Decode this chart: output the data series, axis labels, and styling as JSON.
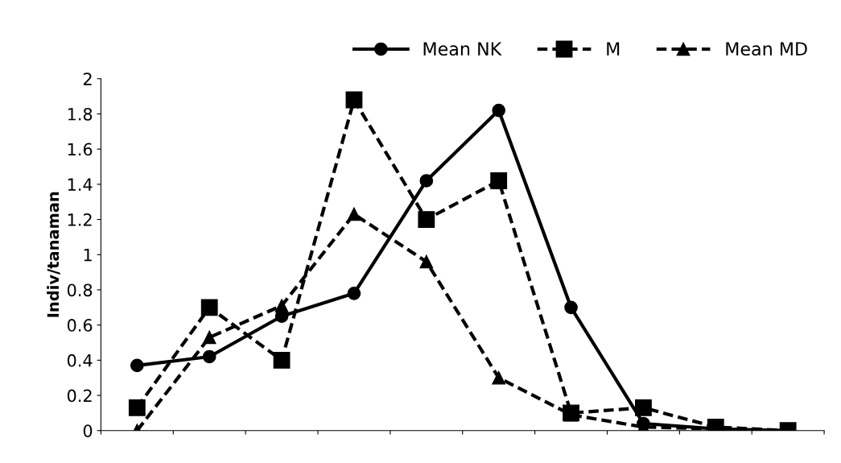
{
  "chart_data": {
    "type": "line",
    "ylabel": "Indiv/tanaman",
    "categories": [
      null,
      null,
      null,
      null,
      null,
      null,
      null,
      null,
      null,
      null
    ],
    "series": [
      {
        "name": "Mean NK",
        "color": "#000000",
        "marker": "circle",
        "line_style": "solid",
        "values": [
          0.37,
          0.42,
          0.65,
          0.78,
          1.42,
          1.82,
          0.7,
          0.04,
          0.01,
          0.0
        ]
      },
      {
        "name": "M",
        "color": "#000000",
        "marker": "square",
        "line_style": "dashed",
        "values": [
          0.13,
          0.7,
          0.4,
          1.88,
          1.2,
          1.42,
          0.1,
          0.13,
          0.02,
          0.0
        ]
      },
      {
        "name": "Mean MD",
        "color": "#000000",
        "marker": "triangle",
        "line_style": "dashed",
        "values": [
          0.0,
          0.53,
          0.71,
          1.23,
          0.96,
          0.3,
          0.09,
          0.02,
          0.01,
          0.0
        ]
      }
    ],
    "ylim": [
      0,
      2
    ],
    "yticks": [
      0,
      0.2,
      0.4,
      0.6,
      0.8,
      1,
      1.2,
      1.4,
      1.6,
      1.8,
      2
    ],
    "grid": false,
    "legend": "top right"
  }
}
